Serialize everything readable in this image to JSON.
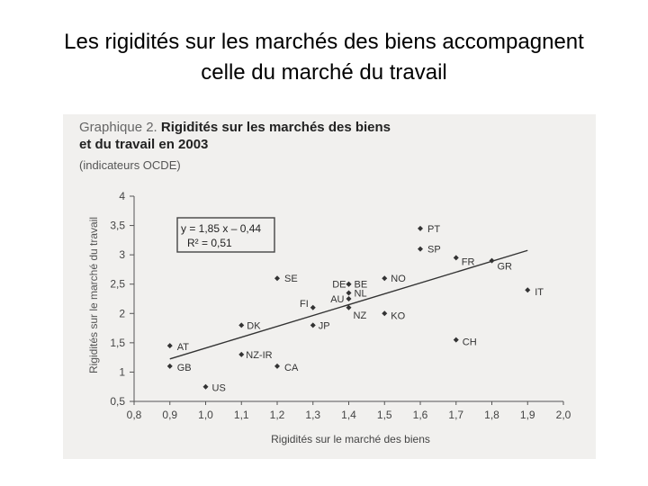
{
  "slide": {
    "title_line1": "Les rigidités sur les marchés des biens accompagnent",
    "title_line2": "celle du marché du travail"
  },
  "figure": {
    "title_lead": "Graphique 2.",
    "title_bold_1": "Rigidités sur les marchés des biens",
    "title_bold_2": "et du travail en 2003",
    "subtitle": "(indicateurs OCDE)"
  },
  "chart_data": {
    "type": "scatter",
    "xlabel": "Rigidités sur le marché des biens",
    "ylabel": "Rigidités sur le marché du travail",
    "xlim": [
      0.8,
      2.0
    ],
    "ylim": [
      0.5,
      4.0
    ],
    "x_ticks": [
      "0,8",
      "0,9",
      "1,0",
      "1,1",
      "1,2",
      "1,3",
      "1,4",
      "1,5",
      "1,6",
      "1,7",
      "1,8",
      "1,9",
      "2,0"
    ],
    "y_ticks": [
      "0,5",
      "1",
      "1,5",
      "2",
      "2,5",
      "3",
      "3,5",
      "4"
    ],
    "grid": false,
    "points": [
      {
        "label": "PT",
        "x": 1.6,
        "y": 3.45
      },
      {
        "label": "SP",
        "x": 1.6,
        "y": 3.1
      },
      {
        "label": "FR",
        "x": 1.7,
        "y": 2.95
      },
      {
        "label": "GR",
        "x": 1.8,
        "y": 2.9
      },
      {
        "label": "IT",
        "x": 1.9,
        "y": 2.4
      },
      {
        "label": "SE",
        "x": 1.2,
        "y": 2.6
      },
      {
        "label": "NO",
        "x": 1.5,
        "y": 2.6
      },
      {
        "label": "DE",
        "x": 1.4,
        "y": 2.5
      },
      {
        "label": "BE",
        "x": 1.4,
        "y": 2.5
      },
      {
        "label": "NL",
        "x": 1.4,
        "y": 2.35
      },
      {
        "label": "AU",
        "x": 1.4,
        "y": 2.25
      },
      {
        "label": "FI",
        "x": 1.3,
        "y": 2.1
      },
      {
        "label": "NZ",
        "x": 1.4,
        "y": 2.1
      },
      {
        "label": "KO",
        "x": 1.5,
        "y": 2.0
      },
      {
        "label": "DK",
        "x": 1.1,
        "y": 1.8
      },
      {
        "label": "JP",
        "x": 1.3,
        "y": 1.8
      },
      {
        "label": "AT",
        "x": 0.9,
        "y": 1.45
      },
      {
        "label": "CH",
        "x": 1.7,
        "y": 1.55
      },
      {
        "label": "NZ-IR",
        "x": 1.1,
        "y": 1.3
      },
      {
        "label": "GB",
        "x": 0.9,
        "y": 1.1
      },
      {
        "label": "CA",
        "x": 1.2,
        "y": 1.1
      },
      {
        "label": "US",
        "x": 1.0,
        "y": 0.75
      }
    ],
    "trendline": {
      "slope": 1.85,
      "intercept": -0.44,
      "x_range": [
        0.9,
        1.9
      ]
    },
    "annotation": {
      "equation": "y = 1,85 x – 0,44",
      "r2": "R² = 0,51"
    }
  }
}
